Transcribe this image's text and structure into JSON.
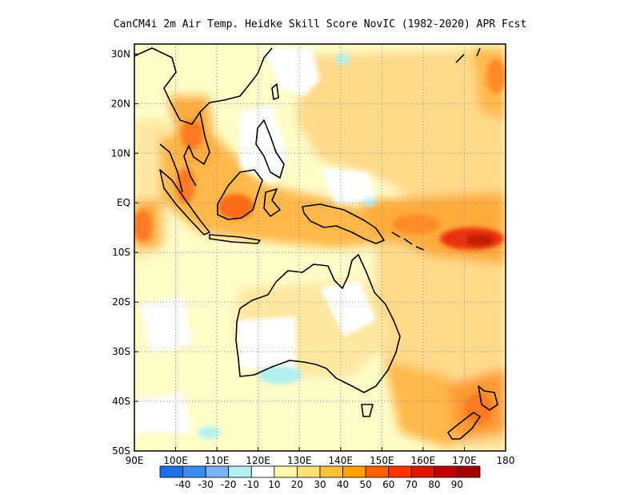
{
  "title": "CanCM4i  2m Air Temp. Heidke Skill Score NovIC (1982-2020) APR Fcst",
  "map": {
    "lat_ticks": [
      "30N",
      "20N",
      "10N",
      "EQ",
      "10S",
      "20S",
      "30S",
      "40S",
      "50S"
    ],
    "lat_values": [
      30,
      20,
      10,
      0,
      -10,
      -20,
      -30,
      -40,
      -50
    ],
    "lon_ticks": [
      "90E",
      "100E",
      "110E",
      "120E",
      "130E",
      "140E",
      "150E",
      "160E",
      "170E",
      "180"
    ],
    "lon_values": [
      90,
      100,
      110,
      120,
      130,
      140,
      150,
      160,
      170,
      180
    ],
    "lat_range": [
      -50,
      32
    ],
    "lon_range": [
      90,
      180
    ],
    "grid": true
  },
  "colorbar": {
    "labels": [
      "-40",
      "-30",
      "-20",
      "-10",
      "10",
      "20",
      "30",
      "40",
      "50",
      "60",
      "70",
      "80",
      "90"
    ],
    "colors": [
      "#1e6ee6",
      "#3c8cf0",
      "#78b4f5",
      "#b4f0f0",
      "#ffffff",
      "#fffaaa",
      "#ffe178",
      "#ffc03c",
      "#ffa000",
      "#ff6000",
      "#ff3200",
      "#e11400",
      "#c00000",
      "#a50000"
    ]
  }
}
